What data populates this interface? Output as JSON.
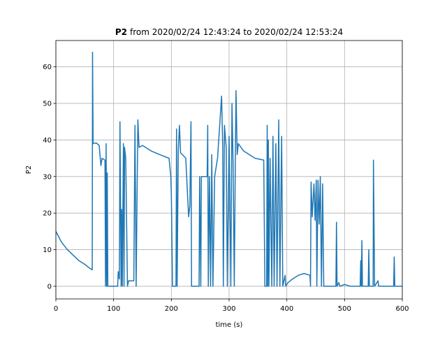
{
  "chart_data": {
    "type": "line",
    "title": {
      "bold": "P2",
      "rest": "from 2020/02/24 12:43:24 to 2020/02/24 12:53:24"
    },
    "xlabel": "time (s)",
    "ylabel": "P2",
    "xlim": [
      0,
      600
    ],
    "ylim": [
      -3.45,
      67.2
    ],
    "xticks": [
      0,
      100,
      200,
      300,
      400,
      500,
      600
    ],
    "yticks": [
      0,
      10,
      20,
      30,
      40,
      50,
      60
    ],
    "grid": true,
    "series": [
      {
        "color": "#1f77b4",
        "x": [
          0,
          10,
          20,
          30,
          40,
          50,
          58,
          63,
          63.5,
          64.5,
          70,
          75,
          78,
          80,
          85,
          86,
          87,
          88,
          89,
          90,
          107,
          108,
          110,
          111,
          113,
          114,
          115,
          117,
          118,
          119,
          121,
          124,
          126,
          135,
          137,
          139,
          142,
          144,
          150,
          165,
          180,
          196,
          199,
          200,
          202,
          208,
          209,
          210,
          212,
          214,
          216,
          225,
          228,
          230,
          232,
          234,
          235,
          248,
          249,
          251,
          252,
          262,
          263,
          264,
          266,
          268,
          270,
          272,
          275,
          280,
          287,
          289,
          290,
          292,
          295,
          297,
          300,
          303,
          305,
          307,
          309,
          311,
          312,
          314,
          316,
          325,
          345,
          360,
          362,
          365,
          366,
          367,
          368,
          369,
          371,
          374,
          376,
          378,
          381,
          383,
          386,
          388,
          391,
          393,
          397,
          398,
          402,
          410,
          420,
          430,
          440,
          441,
          442,
          444,
          447,
          449,
          451,
          452,
          454,
          456,
          458,
          460,
          462,
          464,
          485,
          486,
          487,
          490,
          492,
          500,
          510,
          527,
          528,
          529,
          530,
          531,
          541,
          542,
          543,
          549.5,
          550,
          552,
          558,
          559,
          585,
          586,
          587,
          600
        ],
        "values": [
          15,
          12,
          10,
          8.5,
          7,
          6,
          5,
          4.5,
          64,
          39,
          39.2,
          38.5,
          33,
          35,
          34.5,
          0,
          39,
          0,
          31,
          0,
          0,
          4,
          2,
          45,
          0,
          21,
          0,
          39,
          0,
          38,
          35,
          0,
          1.5,
          1.5,
          44,
          0,
          45.5,
          38,
          38.5,
          37,
          36,
          35,
          30,
          25,
          0,
          0,
          43,
          0,
          37,
          44,
          36.5,
          35,
          25,
          19,
          22,
          45,
          0,
          0,
          30,
          0,
          30,
          30,
          44,
          0,
          30,
          0,
          36,
          0,
          30,
          35,
          52,
          38,
          0,
          44,
          38,
          0,
          41,
          0,
          50,
          33,
          0,
          38,
          53.5,
          36,
          39,
          37,
          35,
          34.5,
          0,
          0,
          44,
          0,
          40,
          0,
          35,
          0,
          41,
          0,
          39,
          0,
          45.5,
          0,
          41,
          0,
          3,
          0,
          1,
          2,
          3,
          3.5,
          3,
          0,
          28.5,
          19,
          28,
          18,
          29,
          0,
          29,
          17,
          30,
          0,
          28,
          0,
          0,
          17.5,
          0,
          1,
          0,
          0.5,
          0,
          0,
          7,
          0,
          12.5,
          0,
          0,
          10,
          0,
          0,
          34.5,
          0,
          1.5,
          0,
          0,
          8,
          0,
          0
        ]
      }
    ]
  }
}
